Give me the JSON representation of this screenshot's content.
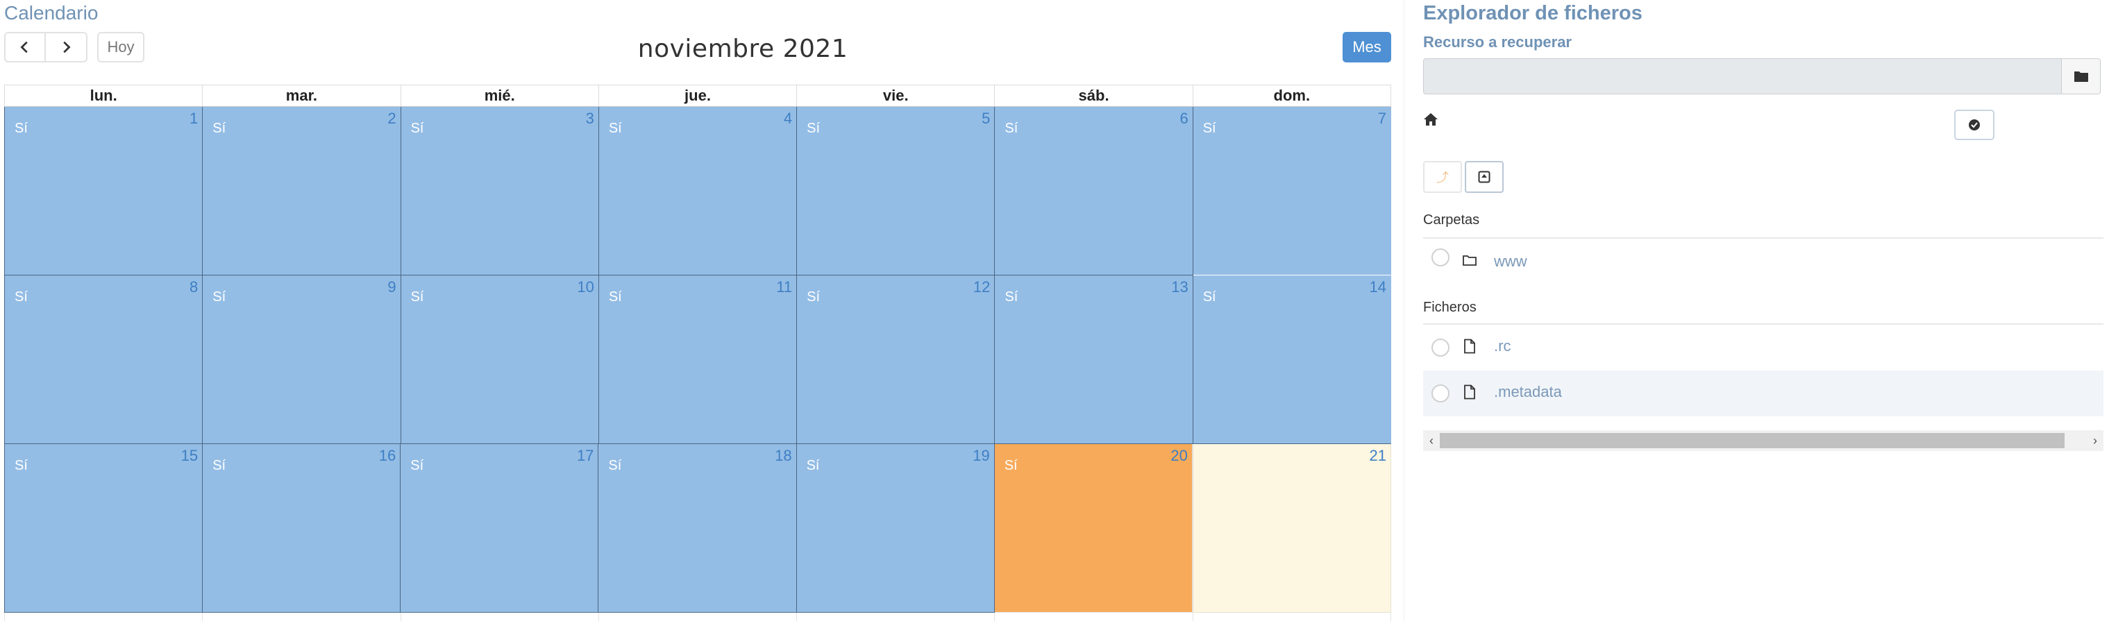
{
  "calendar": {
    "title": "Calendario",
    "today_label": "Hoy",
    "month_title": "noviembre 2021",
    "view_button": "Mes",
    "weekdays": [
      "lun.",
      "mar.",
      "mié.",
      "jue.",
      "vie.",
      "sáb.",
      "dom."
    ],
    "event_text": "Sí",
    "weeks": [
      {
        "days": [
          "1",
          "2",
          "3",
          "4",
          "5",
          "6",
          "7"
        ]
      },
      {
        "days": [
          "8",
          "9",
          "10",
          "11",
          "12",
          "13",
          "14"
        ]
      },
      {
        "days": [
          "15",
          "16",
          "17",
          "18",
          "19",
          "20",
          "21"
        ]
      }
    ],
    "colors": {
      "event": "#94bde5",
      "saturday_highlight": "#f7aa5a",
      "today": "#fdf6e1",
      "accent": "#4e90d3"
    }
  },
  "explorer": {
    "title": "Explorador de ficheros",
    "resource_label": "Recurso a recuperar",
    "resource_value": "",
    "icons": {
      "browse": "folder-icon",
      "home": "home-icon",
      "confirm": "check-circle-icon",
      "up": "level-up-icon",
      "expand": "expand-square-icon"
    },
    "folders_label": "Carpetas",
    "folders": [
      {
        "name": "www"
      }
    ],
    "files_label": "Ficheros",
    "files": [
      {
        "name": ".rc"
      },
      {
        "name": ".metadata"
      }
    ]
  }
}
